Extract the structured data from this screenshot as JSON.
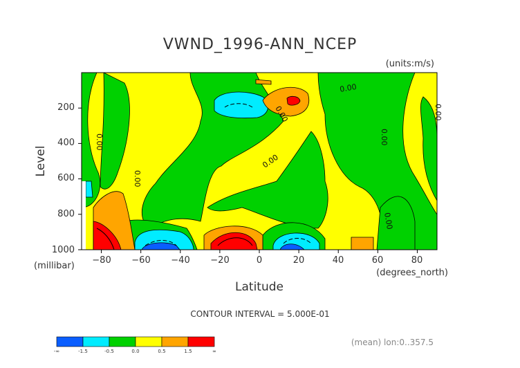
{
  "chart_data": {
    "type": "heatmap",
    "title": "VWND_1996-ANN_NCEP",
    "units": "(units:m/s)",
    "xlabel": "Latitude",
    "xunits": "(degrees_north)",
    "ylabel": "Level",
    "yunits": "(millibar)",
    "xlim": [
      -90,
      90
    ],
    "ylim": [
      1000,
      0
    ],
    "xticks": [
      -80,
      -60,
      -40,
      -20,
      0,
      20,
      40,
      60,
      80
    ],
    "xtick_labels": [
      "−80",
      "−60",
      "−40",
      "−20",
      "0",
      "20",
      "40",
      "60",
      "80"
    ],
    "yticks": [
      200,
      400,
      600,
      800,
      1000
    ],
    "ytick_labels": [
      "200",
      "400",
      "600",
      "800",
      "1000"
    ],
    "contour_interval_text": "CONTOUR INTERVAL = 5.000E-01",
    "contour_labels": [
      "0.00",
      "0.00",
      "0.00",
      "0.00",
      "0.00",
      "0.00",
      "0.00",
      "0.00",
      "0.00",
      "0.00"
    ],
    "colorbar": {
      "colors": [
        "#0a5eff",
        "#00ecff",
        "#00d100",
        "#ffff00",
        "#ffa500",
        "#ff0000"
      ],
      "labels": [
        "-∞",
        "-1.5",
        "-0.5",
        "0.0",
        "0.5",
        "1.5",
        "∞"
      ]
    },
    "footer_note": "(mean) lon:0..357.5",
    "regions": [
      {
        "name": "background",
        "level": "0.0-0.5",
        "color": "#ffff00"
      },
      {
        "name": "green",
        "level": "-0.5-0.0",
        "color": "#00d100"
      },
      {
        "name": "cyan",
        "level": "-1.5--0.5",
        "color": "#00ecff"
      },
      {
        "name": "blue",
        "level": "<-1.5",
        "color": "#0a5eff"
      },
      {
        "name": "orange",
        "level": "0.5-1.5",
        "color": "#ffa500"
      },
      {
        "name": "red",
        "level": ">1.5",
        "color": "#ff0000"
      }
    ]
  }
}
